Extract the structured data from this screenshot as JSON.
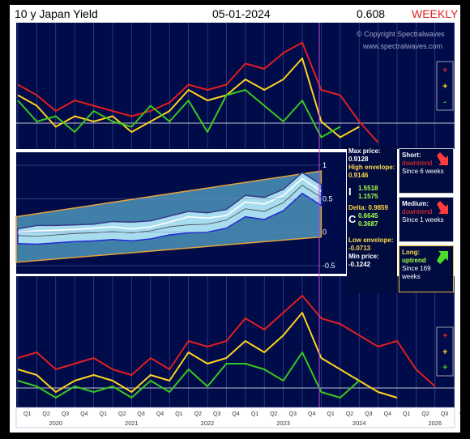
{
  "header": {
    "title": "10 y Japan Yield",
    "date": "05-01-2024",
    "price": "0.608",
    "timeframe": "WEEKLY"
  },
  "watermark": {
    "line1": "© Copyright Spectralwaves",
    "line2": "www.spectralwaves.com"
  },
  "colors": {
    "panel_bg": "#000b4a",
    "short_line": "#39c81f",
    "medium_line": "#ffd21f",
    "long_line": "#e01f1f",
    "envelope_outer": "#3f7fa8",
    "envelope_inner": "#a8dcef",
    "envelope_border": "#e7a23a",
    "band_line": "#2428d8",
    "price_line": "#ffffff",
    "gridline": "#ffffff",
    "cursor_line": "#c04ad8"
  },
  "top_legend": [
    "+",
    "+",
    "-"
  ],
  "bottom_legend": [
    "+",
    "+",
    "+"
  ],
  "info": {
    "max_price_label": "Max price:",
    "max_price": "0.9128",
    "high_env_label": "High envelope:",
    "high_env": "0.9146",
    "i_label": "I",
    "i_val1": "1.5518",
    "i_val2": "1.1575",
    "delta_label": "Delta:",
    "delta": "0.9859",
    "c_label": "C",
    "c_val1": "0.6645",
    "c_val2": "0.3687",
    "low_env_label": "Low envelope:",
    "low_env": "-0.0713",
    "min_price_label": "Min price:",
    "min_price": "-0.1242"
  },
  "trends": {
    "short": {
      "label": "Short:",
      "dir": "downtrend",
      "since": "Since 6 weeks",
      "arrow": "down-arrow"
    },
    "medium": {
      "label": "Medium:",
      "dir": "downtrend",
      "since": "Since 1 weeks",
      "arrow": "down-arrow"
    },
    "long": {
      "label": "Long:",
      "dir": "uptrend",
      "since": "Since 169 weeks",
      "arrow": "up-arrow"
    }
  },
  "chart_data": {
    "type": "line",
    "price_axis_ticks": [
      "1",
      "0.5",
      "0",
      "-0.5"
    ],
    "price_ylim": [
      -0.5,
      1.0
    ],
    "x_quarters": [
      "Q1",
      "Q2",
      "Q3",
      "Q4",
      "Q1",
      "Q2",
      "Q3",
      "Q4",
      "Q1",
      "Q2",
      "Q3",
      "Q4",
      "Q1",
      "Q2",
      "Q3",
      "Q4",
      "Q1",
      "Q2",
      "Q3",
      "Q4",
      "Q1",
      "Q2",
      "Q3",
      "Q4"
    ],
    "x_years": [
      "2020",
      "2021",
      "2022",
      "2023",
      "2024",
      "2026"
    ],
    "price": {
      "x": [
        2020.0,
        2020.25,
        2020.5,
        2020.75,
        2021.0,
        2021.25,
        2021.5,
        2021.75,
        2022.0,
        2022.25,
        2022.5,
        2022.75,
        2023.0,
        2023.25,
        2023.5,
        2023.75,
        2024.0
      ],
      "close": [
        0.0,
        0.02,
        0.03,
        0.04,
        0.06,
        0.08,
        0.05,
        0.08,
        0.15,
        0.23,
        0.21,
        0.25,
        0.45,
        0.42,
        0.55,
        0.8,
        0.61
      ],
      "band_hi": [
        0.05,
        0.1,
        0.1,
        0.11,
        0.12,
        0.16,
        0.15,
        0.17,
        0.24,
        0.31,
        0.29,
        0.34,
        0.55,
        0.52,
        0.64,
        0.89,
        0.71
      ],
      "band_lo": [
        -0.05,
        -0.06,
        -0.04,
        -0.02,
        -0.01,
        0.01,
        -0.01,
        0.02,
        0.08,
        0.11,
        0.12,
        0.18,
        0.35,
        0.31,
        0.44,
        0.7,
        0.52
      ]
    },
    "oscillators_top": {
      "x": [
        2020.0,
        2020.25,
        2020.5,
        2020.75,
        2021.0,
        2021.25,
        2021.5,
        2021.75,
        2022.0,
        2022.25,
        2022.5,
        2022.75,
        2023.0,
        2023.25,
        2023.5,
        2023.75,
        2024.0,
        2024.25,
        2024.5,
        2024.75
      ],
      "series": [
        {
          "key": "long",
          "values": [
            0.55,
            0.45,
            0.3,
            0.4,
            0.35,
            0.3,
            0.25,
            0.3,
            0.38,
            0.55,
            0.5,
            0.55,
            0.75,
            0.7,
            0.85,
            0.95,
            0.5,
            0.45,
            0.2,
            0.0
          ]
        },
        {
          "key": "medium",
          "values": [
            0.45,
            0.35,
            0.15,
            0.25,
            0.2,
            0.25,
            0.1,
            0.2,
            0.3,
            0.5,
            0.4,
            0.45,
            0.6,
            0.5,
            0.6,
            0.8,
            0.2,
            0.05,
            0.15,
            null
          ]
        },
        {
          "key": "short",
          "values": [
            0.4,
            0.2,
            0.25,
            0.1,
            0.3,
            0.2,
            0.15,
            0.35,
            0.2,
            0.4,
            0.1,
            0.45,
            0.5,
            0.35,
            0.2,
            0.4,
            0.05,
            0.15,
            null,
            null
          ]
        }
      ]
    },
    "oscillators_bottom": {
      "x": [
        2020.0,
        2020.25,
        2020.5,
        2020.75,
        2021.0,
        2021.25,
        2021.5,
        2021.75,
        2022.0,
        2022.25,
        2022.5,
        2022.75,
        2023.0,
        2023.25,
        2023.5,
        2023.75,
        2024.0,
        2024.25,
        2024.5,
        2024.75,
        2025.0,
        2025.25,
        2025.5
      ],
      "series": [
        {
          "key": "long",
          "values": [
            0.4,
            0.45,
            0.3,
            0.35,
            0.4,
            0.3,
            0.25,
            0.4,
            0.3,
            0.55,
            0.5,
            0.55,
            0.75,
            0.65,
            0.8,
            0.95,
            0.75,
            0.7,
            0.6,
            0.5,
            0.55,
            0.3,
            0.15
          ]
        },
        {
          "key": "medium",
          "values": [
            0.3,
            0.25,
            0.1,
            0.2,
            0.25,
            0.2,
            0.1,
            0.25,
            0.2,
            0.45,
            0.35,
            0.4,
            0.55,
            0.45,
            0.6,
            0.8,
            0.4,
            0.3,
            0.2,
            0.1,
            0.05,
            null,
            null
          ]
        },
        {
          "key": "short",
          "values": [
            0.2,
            0.15,
            0.05,
            0.15,
            0.1,
            0.15,
            0.05,
            0.2,
            0.1,
            0.3,
            0.15,
            0.35,
            0.35,
            0.3,
            0.2,
            0.45,
            0.1,
            0.05,
            0.2,
            null,
            null,
            null,
            null
          ]
        }
      ]
    }
  }
}
